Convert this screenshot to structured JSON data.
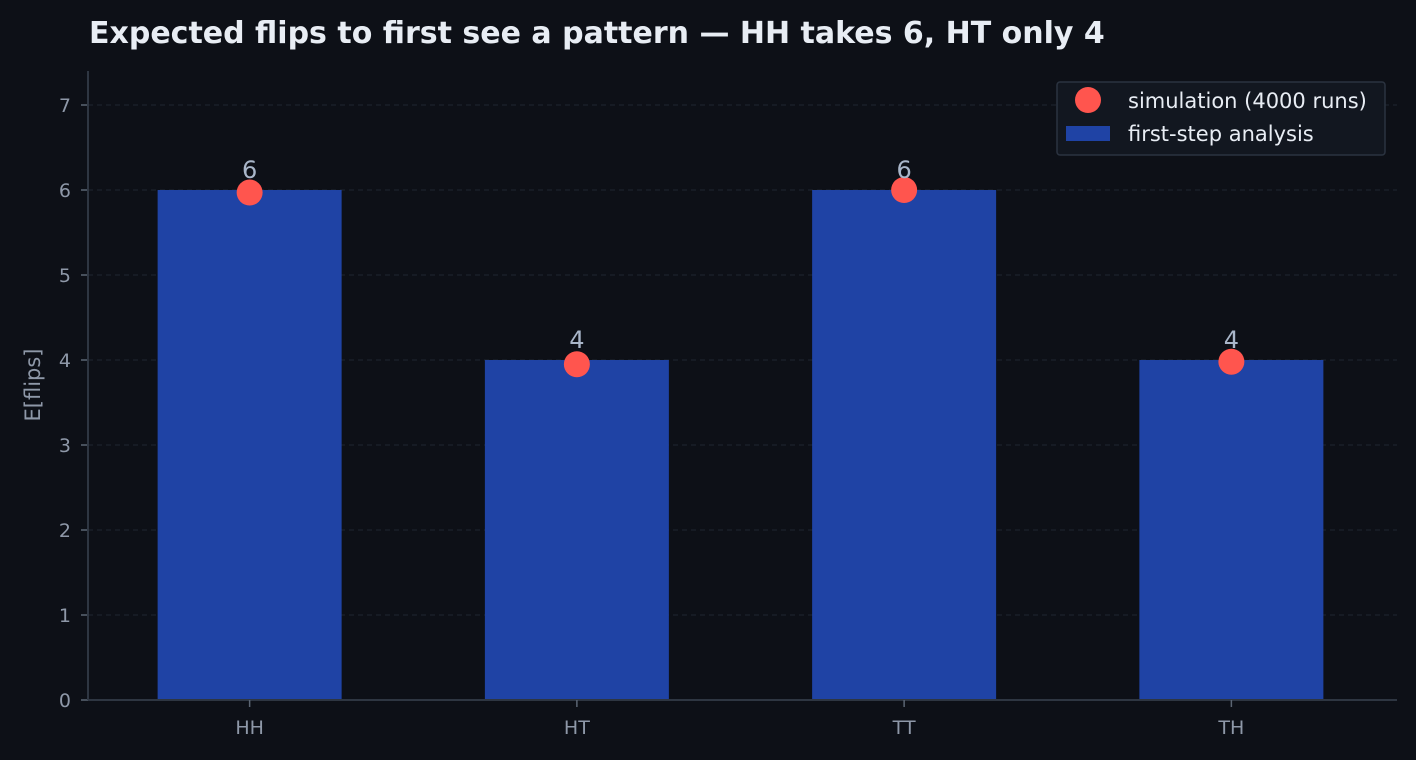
{
  "chart_data": {
    "type": "bar",
    "title": "Expected flips to first see a pattern — HH takes 6, HT only 4",
    "xlabel": "",
    "ylabel": "E[flips]",
    "categories": [
      "HH",
      "HT",
      "TT",
      "TH"
    ],
    "ylim": [
      0,
      7.4
    ],
    "yticks": [
      0,
      1,
      2,
      3,
      4,
      5,
      6,
      7
    ],
    "grid": "horizontal dashed",
    "series": [
      {
        "name": "first-step analysis",
        "kind": "bar",
        "color": "#1f43a5",
        "values": [
          6,
          4,
          6,
          4
        ],
        "data_labels": [
          "6",
          "4",
          "6",
          "4"
        ]
      },
      {
        "name": "simulation (4000 runs)",
        "kind": "point",
        "color": "#ff554e",
        "values": [
          5.97,
          3.95,
          6.0,
          3.98
        ]
      }
    ],
    "legend": {
      "position": "top-right"
    }
  }
}
